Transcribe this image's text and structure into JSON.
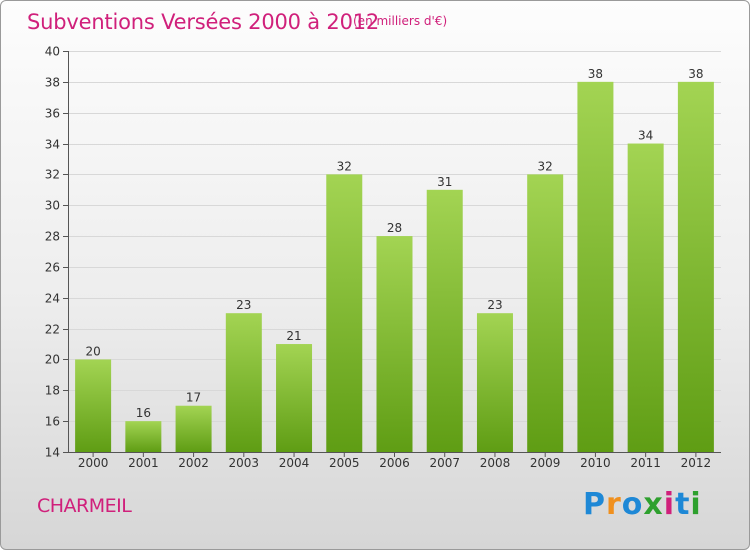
{
  "title": "Subventions Versées 2000 à 2012",
  "unit_note": "(en milliers d'€)",
  "commune": "CHARMEIL",
  "logo": {
    "text": "Proxiti",
    "letters": [
      "P",
      "r",
      "o",
      "x",
      "i",
      "t",
      "i"
    ],
    "colors": [
      "#1e88d6",
      "#f0901e",
      "#1e88d6",
      "#2ea02e",
      "#d0207b",
      "#1e88d6",
      "#2ea02e"
    ]
  },
  "colors": {
    "accent": "#d0207b",
    "bar_top": "#a3d453",
    "bar_bottom": "#5f9d14"
  },
  "chart_data": {
    "type": "bar",
    "title": "Subventions Versées 2000 à 2012",
    "subtitle": "(en milliers d'€)",
    "categories": [
      "2000",
      "2001",
      "2002",
      "2003",
      "2004",
      "2005",
      "2006",
      "2007",
      "2008",
      "2009",
      "2010",
      "2011",
      "2012"
    ],
    "values": [
      20,
      16,
      17,
      23,
      21,
      32,
      28,
      31,
      23,
      32,
      38,
      34,
      38
    ],
    "ylim": [
      14,
      40
    ],
    "yticks": [
      14,
      16,
      18,
      20,
      22,
      24,
      26,
      28,
      30,
      32,
      34,
      36,
      38,
      40
    ],
    "grid": "horizontal",
    "data_labels": true
  }
}
